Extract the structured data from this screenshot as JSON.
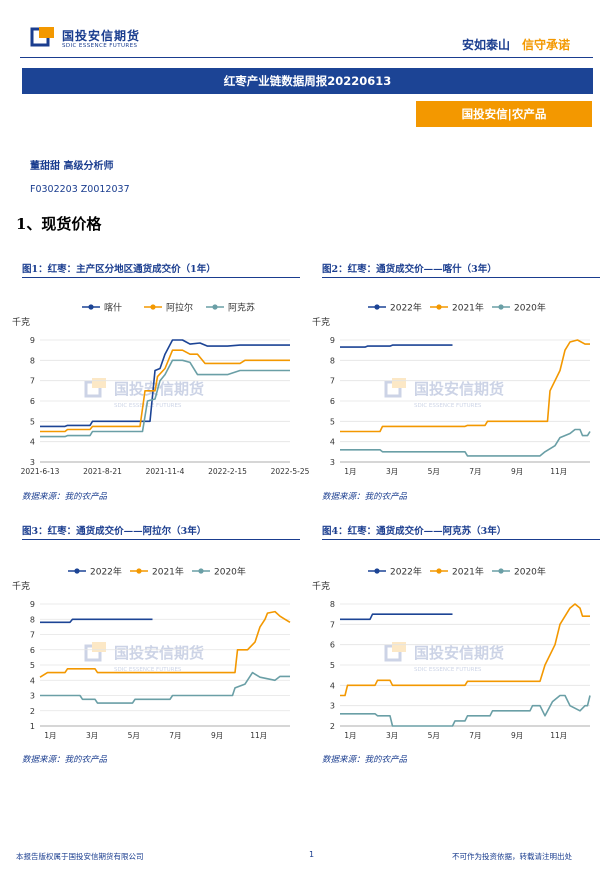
{
  "header": {
    "logo_cn": "国投安信期货",
    "logo_en": "SDIC ESSENCE FUTURES",
    "slogan_a": "安如泰山",
    "slogan_b": "信守承诺"
  },
  "banner": "红枣产业链数据周报20220613",
  "orange_tab": "国投安信|农产品",
  "analyst": "董甜甜 高级分析师",
  "license": "F0302203 Z0012037",
  "section_title": "1、现货价格",
  "watermark": {
    "cn": "国投安信期货",
    "en": "SDIC ESSENCE FUTURES"
  },
  "colors": {
    "navy": "#1c4495",
    "orange": "#f39800",
    "teal": "#6a9fa6"
  },
  "footer": {
    "left": "本报告版权属于国投安信期货有限公司",
    "page": "1",
    "right": "不可作为投资依据，转载请注明出处"
  },
  "figures": [
    {
      "title": "图1：红枣：主产区分地区通货成交价（1年）",
      "source": "数据来源：我的农产品",
      "chart_data": {
        "type": "line",
        "ylabel": "千克",
        "ylim": [
          3,
          9
        ],
        "yticks": [
          "3",
          "4",
          "5",
          "6",
          "7",
          "8",
          "9"
        ],
        "xticks": [
          "2021-6-13",
          "2021-8-21",
          "2021-11-4",
          "2022-2-15",
          "2022-5-25"
        ],
        "series": [
          {
            "name": "喀什",
            "color": "#1c4495",
            "points": [
              [
                0,
                4.75
              ],
              [
                0.1,
                4.75
              ],
              [
                0.11,
                4.8
              ],
              [
                0.2,
                4.8
              ],
              [
                0.21,
                5.0
              ],
              [
                0.4,
                5.0
              ],
              [
                0.44,
                5.0
              ],
              [
                0.46,
                7.5
              ],
              [
                0.48,
                7.6
              ],
              [
                0.5,
                8.3
              ],
              [
                0.53,
                9.0
              ],
              [
                0.57,
                9.0
              ],
              [
                0.6,
                8.8
              ],
              [
                0.64,
                8.85
              ],
              [
                0.67,
                8.7
              ],
              [
                0.75,
                8.7
              ],
              [
                0.8,
                8.75
              ],
              [
                1,
                8.75
              ]
            ]
          },
          {
            "name": "阿拉尔",
            "color": "#f39800",
            "points": [
              [
                0,
                4.5
              ],
              [
                0.1,
                4.5
              ],
              [
                0.11,
                4.6
              ],
              [
                0.2,
                4.6
              ],
              [
                0.21,
                4.75
              ],
              [
                0.4,
                4.75
              ],
              [
                0.42,
                6.5
              ],
              [
                0.46,
                6.5
              ],
              [
                0.47,
                7.2
              ],
              [
                0.5,
                7.6
              ],
              [
                0.53,
                8.5
              ],
              [
                0.57,
                8.5
              ],
              [
                0.6,
                8.3
              ],
              [
                0.63,
                8.3
              ],
              [
                0.66,
                7.85
              ],
              [
                0.8,
                7.85
              ],
              [
                0.82,
                8.0
              ],
              [
                1,
                8.0
              ]
            ]
          },
          {
            "name": "阿克苏",
            "color": "#6a9fa6",
            "points": [
              [
                0,
                4.25
              ],
              [
                0.1,
                4.25
              ],
              [
                0.11,
                4.3
              ],
              [
                0.2,
                4.3
              ],
              [
                0.21,
                4.5
              ],
              [
                0.41,
                4.5
              ],
              [
                0.43,
                6.0
              ],
              [
                0.46,
                6.1
              ],
              [
                0.48,
                7.0
              ],
              [
                0.5,
                7.3
              ],
              [
                0.53,
                8.0
              ],
              [
                0.57,
                8.0
              ],
              [
                0.6,
                7.9
              ],
              [
                0.63,
                7.3
              ],
              [
                0.75,
                7.3
              ],
              [
                0.8,
                7.5
              ],
              [
                1,
                7.5
              ]
            ]
          }
        ]
      }
    },
    {
      "title": "图2：红枣：通货成交价——喀什（3年）",
      "source": "数据来源：我的农产品",
      "chart_data": {
        "type": "line",
        "ylabel": "千克",
        "ylim": [
          3,
          9
        ],
        "yticks": [
          "3",
          "4",
          "5",
          "6",
          "7",
          "8",
          "9"
        ],
        "xticks": [
          "1月",
          "3月",
          "5月",
          "7月",
          "9月",
          "11月"
        ],
        "series": [
          {
            "name": "2022年",
            "color": "#1c4495",
            "points": [
              [
                0,
                8.65
              ],
              [
                0.1,
                8.65
              ],
              [
                0.11,
                8.7
              ],
              [
                0.2,
                8.7
              ],
              [
                0.21,
                8.75
              ],
              [
                0.45,
                8.75
              ]
            ]
          },
          {
            "name": "2021年",
            "color": "#f39800",
            "points": [
              [
                0,
                4.5
              ],
              [
                0.16,
                4.5
              ],
              [
                0.17,
                4.75
              ],
              [
                0.5,
                4.75
              ],
              [
                0.51,
                4.8
              ],
              [
                0.58,
                4.8
              ],
              [
                0.59,
                5.0
              ],
              [
                0.83,
                5.0
              ],
              [
                0.84,
                6.5
              ],
              [
                0.86,
                7.0
              ],
              [
                0.88,
                7.5
              ],
              [
                0.9,
                8.5
              ],
              [
                0.92,
                8.9
              ],
              [
                0.95,
                9.0
              ],
              [
                0.98,
                8.8
              ],
              [
                1,
                8.8
              ]
            ]
          },
          {
            "name": "2020年",
            "color": "#6a9fa6",
            "points": [
              [
                0,
                3.6
              ],
              [
                0.16,
                3.6
              ],
              [
                0.17,
                3.5
              ],
              [
                0.5,
                3.5
              ],
              [
                0.51,
                3.3
              ],
              [
                0.8,
                3.3
              ],
              [
                0.82,
                3.5
              ],
              [
                0.86,
                3.8
              ],
              [
                0.88,
                4.2
              ],
              [
                0.92,
                4.4
              ],
              [
                0.94,
                4.6
              ],
              [
                0.96,
                4.6
              ],
              [
                0.97,
                4.3
              ],
              [
                0.99,
                4.3
              ],
              [
                1,
                4.5
              ]
            ]
          }
        ]
      }
    },
    {
      "title": "图3：红枣：通货成交价——阿拉尔（3年）",
      "source": "数据来源：我的农产品",
      "chart_data": {
        "type": "line",
        "ylabel": "千克",
        "ylim": [
          1,
          9
        ],
        "yticks": [
          "1",
          "2",
          "3",
          "4",
          "5",
          "6",
          "7",
          "8",
          "9"
        ],
        "xticks": [
          "1月",
          "3月",
          "5月",
          "7月",
          "9月",
          "11月"
        ],
        "series": [
          {
            "name": "2022年",
            "color": "#1c4495",
            "points": [
              [
                0,
                7.8
              ],
              [
                0.12,
                7.8
              ],
              [
                0.13,
                8.0
              ],
              [
                0.45,
                8.0
              ]
            ]
          },
          {
            "name": "2021年",
            "color": "#f39800",
            "points": [
              [
                0,
                4.2
              ],
              [
                0.03,
                4.5
              ],
              [
                0.1,
                4.5
              ],
              [
                0.11,
                4.75
              ],
              [
                0.22,
                4.75
              ],
              [
                0.23,
                4.5
              ],
              [
                0.78,
                4.5
              ],
              [
                0.79,
                6.0
              ],
              [
                0.83,
                6.0
              ],
              [
                0.86,
                6.5
              ],
              [
                0.88,
                7.5
              ],
              [
                0.9,
                8.0
              ],
              [
                0.91,
                8.4
              ],
              [
                0.94,
                8.5
              ],
              [
                0.96,
                8.2
              ],
              [
                0.98,
                8.0
              ],
              [
                1,
                7.8
              ]
            ]
          },
          {
            "name": "2020年",
            "color": "#6a9fa6",
            "points": [
              [
                0,
                3.0
              ],
              [
                0.16,
                3.0
              ],
              [
                0.17,
                2.75
              ],
              [
                0.22,
                2.75
              ],
              [
                0.23,
                2.5
              ],
              [
                0.37,
                2.5
              ],
              [
                0.38,
                2.75
              ],
              [
                0.52,
                2.75
              ],
              [
                0.53,
                3.0
              ],
              [
                0.77,
                3.0
              ],
              [
                0.78,
                3.5
              ],
              [
                0.82,
                3.75
              ],
              [
                0.85,
                4.5
              ],
              [
                0.88,
                4.2
              ],
              [
                0.94,
                4.0
              ],
              [
                0.96,
                4.25
              ],
              [
                1,
                4.25
              ]
            ]
          }
        ]
      }
    },
    {
      "title": "图4：红枣：通货成交价——阿克苏（3年）",
      "source": "数据来源：我的农产品",
      "chart_data": {
        "type": "line",
        "ylabel": "千克",
        "ylim": [
          2,
          8
        ],
        "yticks": [
          "2",
          "3",
          "4",
          "5",
          "6",
          "7",
          "8"
        ],
        "xticks": [
          "1月",
          "3月",
          "5月",
          "7月",
          "9月",
          "11月"
        ],
        "series": [
          {
            "name": "2022年",
            "color": "#1c4495",
            "points": [
              [
                0,
                7.25
              ],
              [
                0.12,
                7.25
              ],
              [
                0.13,
                7.5
              ],
              [
                0.45,
                7.5
              ]
            ]
          },
          {
            "name": "2021年",
            "color": "#f39800",
            "points": [
              [
                0,
                3.5
              ],
              [
                0.02,
                3.5
              ],
              [
                0.03,
                4.0
              ],
              [
                0.14,
                4.0
              ],
              [
                0.15,
                4.25
              ],
              [
                0.2,
                4.25
              ],
              [
                0.21,
                4.0
              ],
              [
                0.5,
                4.0
              ],
              [
                0.51,
                4.2
              ],
              [
                0.8,
                4.2
              ],
              [
                0.82,
                5.0
              ],
              [
                0.86,
                6.0
              ],
              [
                0.88,
                7.0
              ],
              [
                0.92,
                7.8
              ],
              [
                0.94,
                8.0
              ],
              [
                0.96,
                7.8
              ],
              [
                0.97,
                7.4
              ],
              [
                1,
                7.4
              ]
            ]
          },
          {
            "name": "2020年",
            "color": "#6a9fa6",
            "points": [
              [
                0,
                2.6
              ],
              [
                0.14,
                2.6
              ],
              [
                0.15,
                2.5
              ],
              [
                0.2,
                2.5
              ],
              [
                0.21,
                2.0
              ],
              [
                0.45,
                2.0
              ],
              [
                0.46,
                2.25
              ],
              [
                0.5,
                2.25
              ],
              [
                0.51,
                2.5
              ],
              [
                0.6,
                2.5
              ],
              [
                0.61,
                2.75
              ],
              [
                0.76,
                2.75
              ],
              [
                0.77,
                3.0
              ],
              [
                0.8,
                3.0
              ],
              [
                0.82,
                2.5
              ],
              [
                0.85,
                3.2
              ],
              [
                0.88,
                3.5
              ],
              [
                0.9,
                3.5
              ],
              [
                0.92,
                3.0
              ],
              [
                0.96,
                2.75
              ],
              [
                0.98,
                3.0
              ],
              [
                0.99,
                3.0
              ],
              [
                1,
                3.5
              ]
            ]
          }
        ]
      }
    }
  ]
}
